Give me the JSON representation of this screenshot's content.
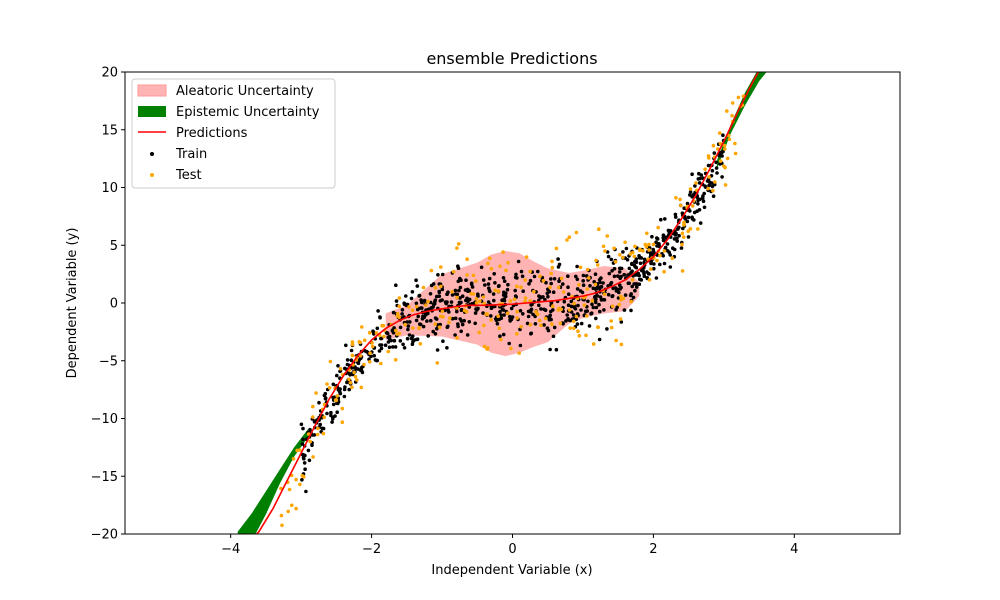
{
  "chart_data": {
    "type": "scatter",
    "title": "ensemble Predictions",
    "xlabel": "Independent Variable (x)",
    "ylabel": "Dependent Variable (y)",
    "xlim": [
      -5.5,
      5.5
    ],
    "ylim": [
      -20,
      20
    ],
    "xticks": [
      -4,
      -2,
      0,
      2,
      4
    ],
    "xtick_labels": [
      "−4",
      "−2",
      "0",
      "2",
      "4"
    ],
    "yticks": [
      -20,
      -15,
      -10,
      -5,
      0,
      5,
      10,
      15,
      20
    ],
    "ytick_labels": [
      "−20",
      "−15",
      "−10",
      "−5",
      "0",
      "5",
      "10",
      "15",
      "20"
    ],
    "grid": false,
    "legend_position": "top-left",
    "series": [
      {
        "name": "Aleatoric Uncertainty",
        "kind": "band",
        "color": "#ffb3b3",
        "x": [
          -1.8,
          -1.5,
          -1.0,
          -0.5,
          -0.3,
          -0.1,
          0.1,
          0.3,
          0.5,
          0.8,
          1.0,
          1.3,
          1.6,
          1.8
        ],
        "upper": [
          -0.9,
          -0.2,
          2.5,
          3.5,
          4.2,
          4.5,
          4.3,
          3.6,
          3.0,
          2.6,
          2.8,
          3.2,
          3.0,
          1.8
        ],
        "lower": [
          -3.2,
          -2.8,
          -2.9,
          -3.6,
          -4.3,
          -4.6,
          -4.3,
          -3.8,
          -3.4,
          -1.8,
          -1.3,
          -0.9,
          -0.7,
          0.6
        ]
      },
      {
        "name": "Epistemic Uncertainty",
        "kind": "band",
        "color": "#008000",
        "x": [
          -3.9,
          -3.7,
          -3.5,
          -3.3,
          -3.1,
          -2.9,
          2.9,
          3.1,
          3.3,
          3.5,
          3.7,
          3.9
        ],
        "upper": [
          -19.8,
          -18.2,
          -16.3,
          -14.4,
          -12.5,
          -10.9,
          12.3,
          15.5,
          18.2,
          20.4,
          22.0,
          23.0
        ],
        "lower": [
          -22.5,
          -20.6,
          -18.3,
          -15.6,
          -13.3,
          -11.6,
          11.6,
          14.7,
          17.1,
          19.2,
          20.7,
          21.7
        ]
      },
      {
        "name": "Predictions",
        "kind": "line",
        "color": "#ff0000",
        "x": [
          -3.8,
          -3.6,
          -3.4,
          -3.2,
          -3.0,
          -2.8,
          -2.6,
          -2.4,
          -2.2,
          -2.0,
          -1.8,
          -1.6,
          -1.4,
          -1.2,
          -1.0,
          -0.8,
          -0.6,
          -0.4,
          -0.2,
          0.0,
          0.2,
          0.4,
          0.6,
          0.8,
          1.0,
          1.2,
          1.4,
          1.6,
          1.8,
          2.0,
          2.2,
          2.4,
          2.6,
          2.8,
          3.0,
          3.2,
          3.4,
          3.6,
          3.8
        ],
        "y": [
          -21.0,
          -19.8,
          -17.8,
          -15.4,
          -13.0,
          -10.6,
          -8.3,
          -6.3,
          -4.6,
          -3.2,
          -2.2,
          -1.5,
          -1.0,
          -0.7,
          -0.5,
          -0.3,
          -0.2,
          -0.2,
          -0.15,
          -0.1,
          0.0,
          0.1,
          0.2,
          0.4,
          0.6,
          0.9,
          1.4,
          2.0,
          2.9,
          4.0,
          5.5,
          7.3,
          9.3,
          11.6,
          14.0,
          16.6,
          19.0,
          21.2,
          23.0
        ]
      },
      {
        "name": "Train",
        "kind": "points",
        "color": "#000000"
      },
      {
        "name": "Test",
        "kind": "points",
        "color": "#ffa500"
      }
    ]
  }
}
